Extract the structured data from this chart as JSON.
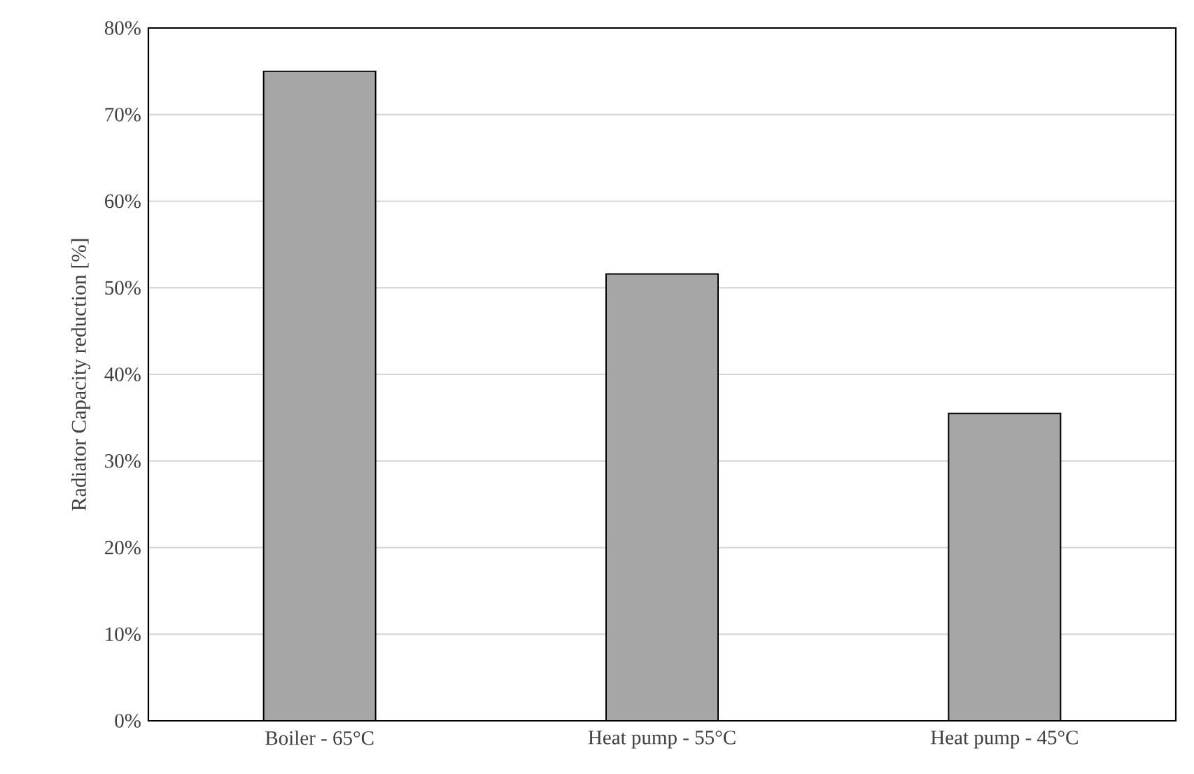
{
  "chart_data": {
    "type": "bar",
    "ylabel": "Radiator Capacity reduction [%]",
    "categories": [
      "Boiler - 65°C",
      "Heat pump - 55°C",
      "Heat pump - 45°C"
    ],
    "values": [
      75,
      51.6,
      35.5
    ],
    "color": "#a6a6a6",
    "ylim": [
      0,
      80
    ],
    "yticks": [
      {
        "value": 0,
        "label": "0%"
      },
      {
        "value": 10,
        "label": "10%"
      },
      {
        "value": 20,
        "label": "20%"
      },
      {
        "value": 30,
        "label": "30%"
      },
      {
        "value": 40,
        "label": "40%"
      },
      {
        "value": 50,
        "label": "50%"
      },
      {
        "value": 60,
        "label": "60%"
      },
      {
        "value": 70,
        "label": "70%"
      },
      {
        "value": 80,
        "label": "80%"
      }
    ],
    "grid": "y"
  }
}
